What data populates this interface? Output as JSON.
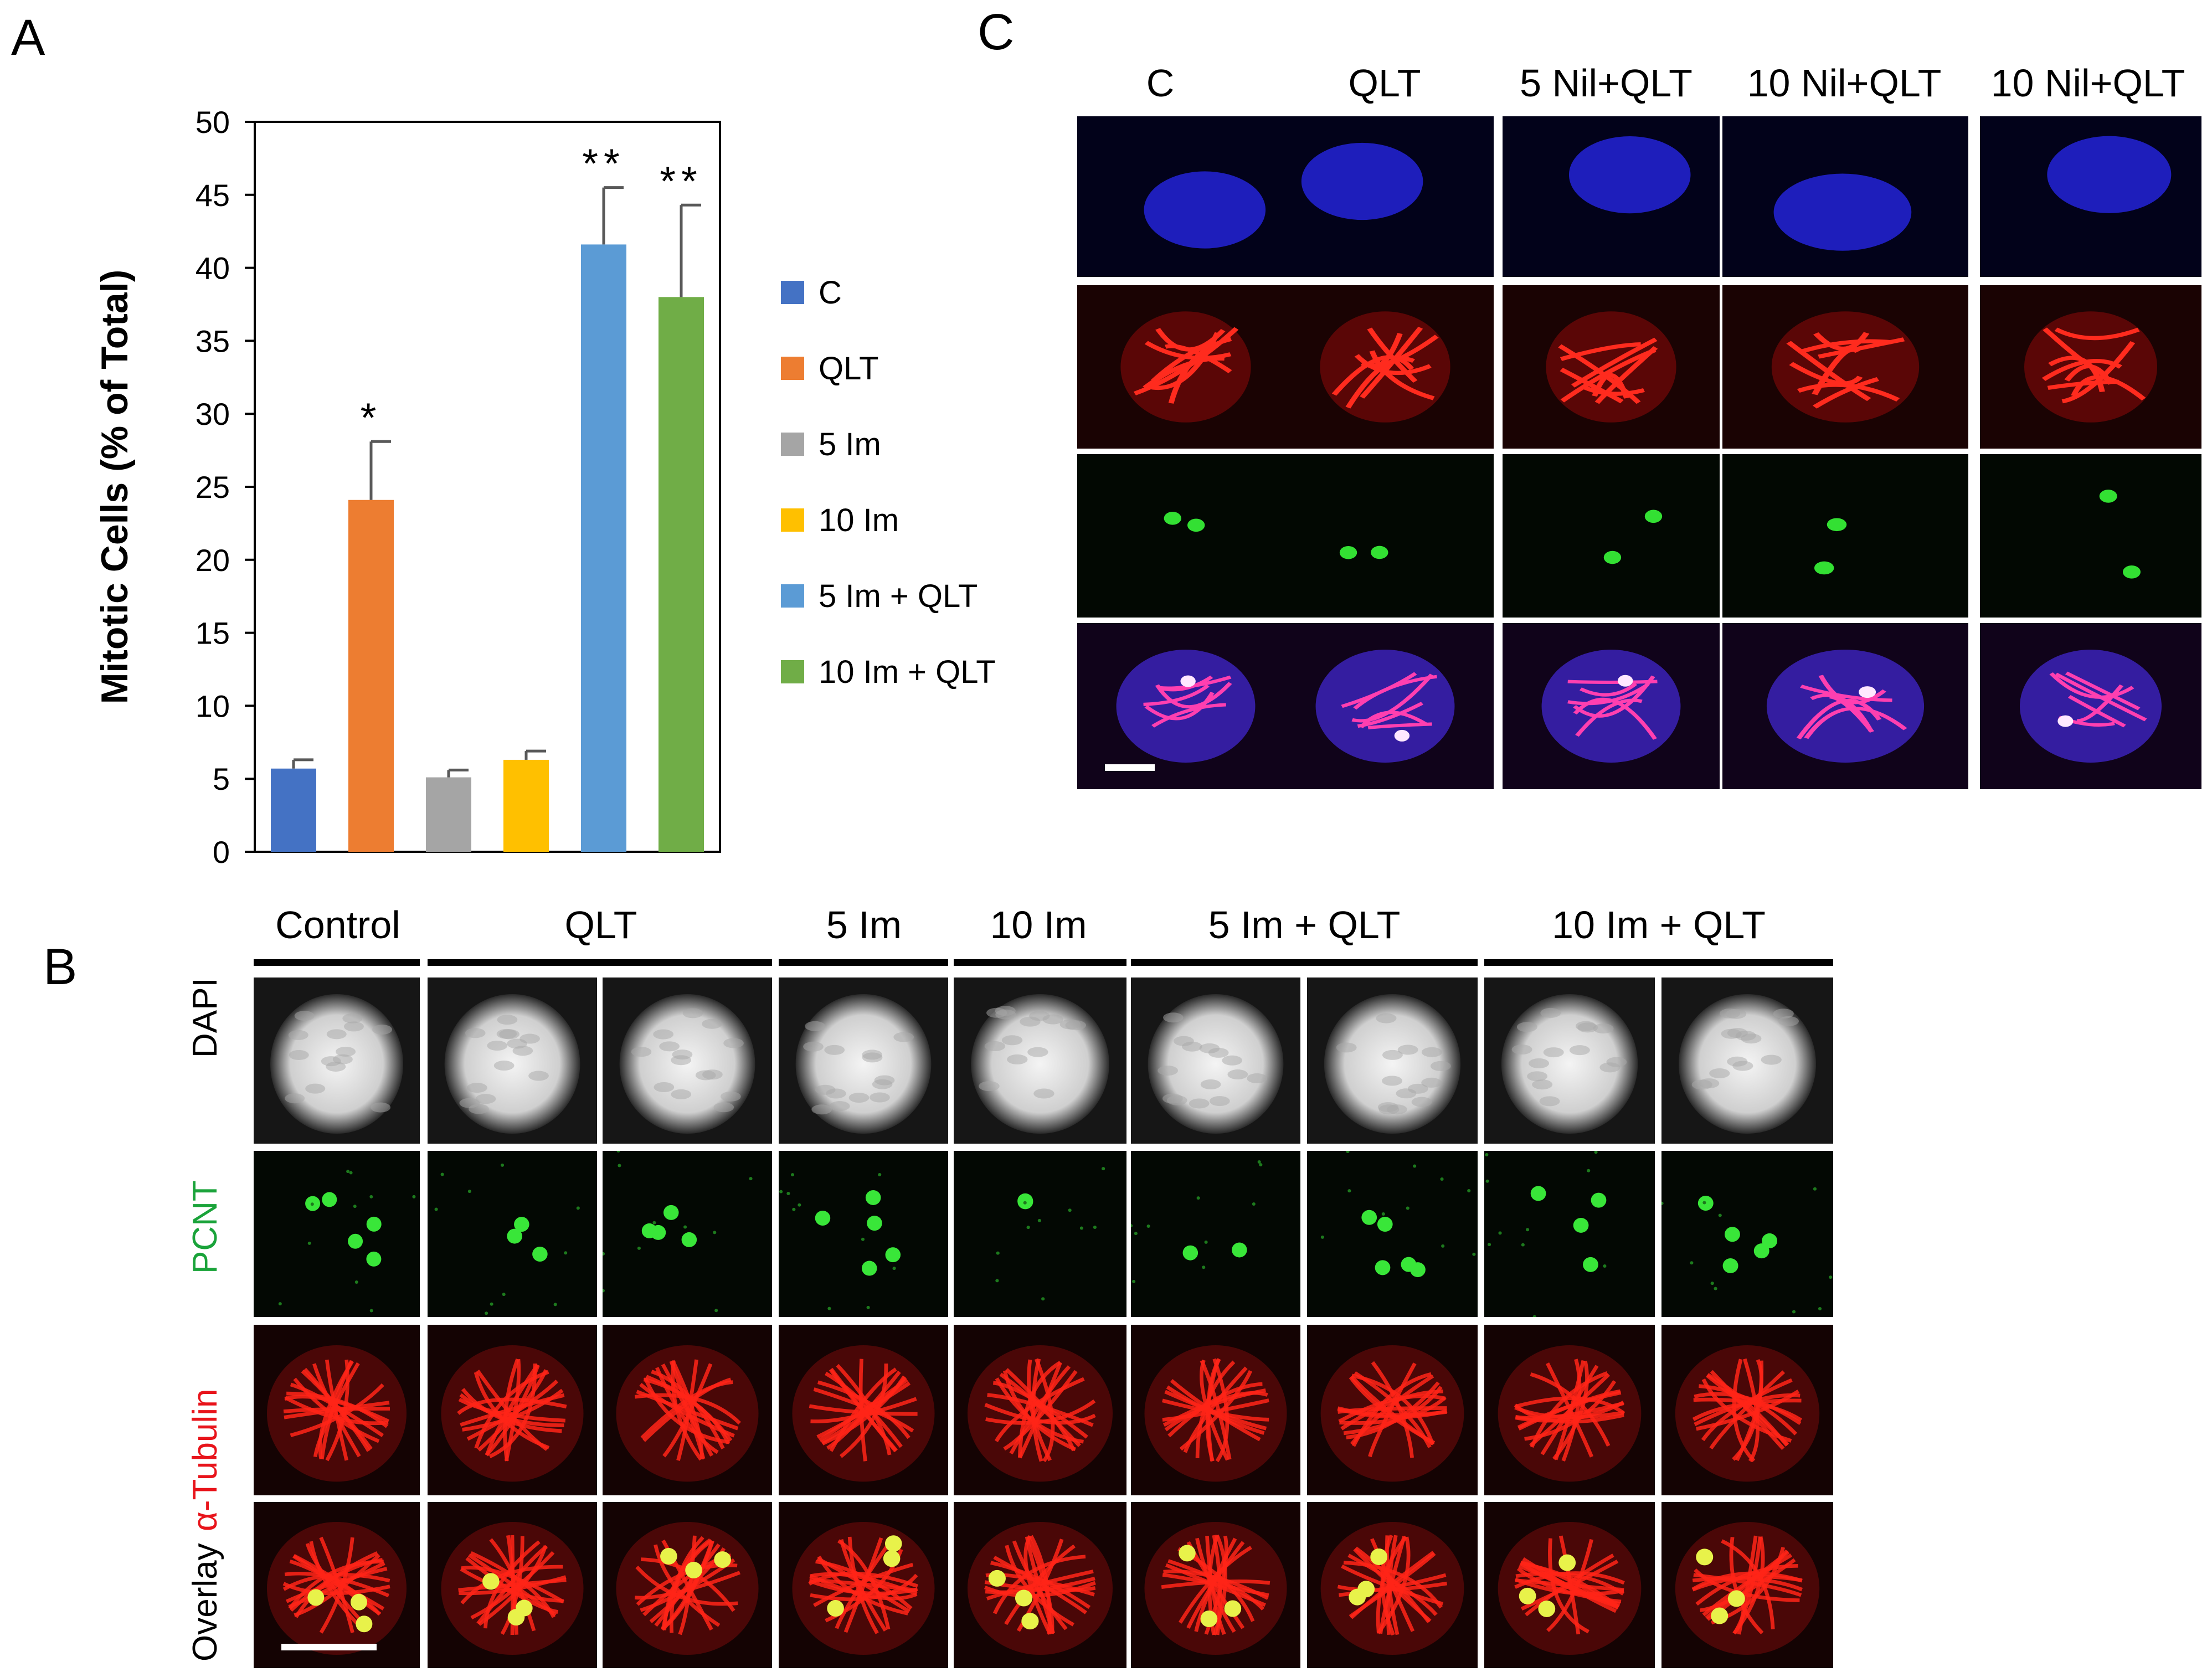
{
  "panel_labels": {
    "a": "A",
    "b": "B",
    "c": "C"
  },
  "chart_data": {
    "type": "bar",
    "ylabel": "Mitotic Cells (% of Total)",
    "ylim": [
      0,
      50
    ],
    "yticks": [
      0,
      5,
      10,
      15,
      20,
      25,
      30,
      35,
      40,
      45,
      50
    ],
    "categories": [
      "C",
      "QLT",
      "5 Im",
      "10 Im",
      "5 Im + QLT",
      "10 Im + QLT"
    ],
    "values": [
      5.7,
      24.1,
      5.1,
      6.3,
      41.6,
      38.0
    ],
    "errors": [
      0.6,
      4.0,
      0.5,
      0.6,
      3.9,
      6.3
    ],
    "significance": [
      "",
      "*",
      "",
      "",
      "**",
      "**"
    ],
    "colors": [
      "#4472C4",
      "#ED7D31",
      "#A5A5A5",
      "#FFC000",
      "#5B9BD5",
      "#70AD47"
    ],
    "grid": false,
    "legend_position": "right"
  },
  "legend": [
    {
      "label": "C",
      "color": "#4472C4"
    },
    {
      "label": "QLT",
      "color": "#ED7D31"
    },
    {
      "label": "5 Im",
      "color": "#A5A5A5"
    },
    {
      "label": "10 Im",
      "color": "#FFC000"
    },
    {
      "label": "5 Im + QLT",
      "color": "#5B9BD5"
    },
    {
      "label": "10 Im + QLT",
      "color": "#70AD47"
    }
  ],
  "panel_b": {
    "columns": [
      "Control",
      "QLT",
      "5 Im",
      "10 Im",
      "5 Im + QLT",
      "10 Im + QLT"
    ],
    "rows": [
      {
        "label": "DAPI",
        "color": "#000000"
      },
      {
        "label": "PCNT",
        "color": "#1aa33a"
      },
      {
        "label": "α-Tubulin",
        "color": "#e8141b"
      },
      {
        "label": "Overlay",
        "color": "#000000"
      }
    ]
  },
  "panel_c": {
    "columns": [
      "C",
      "QLT",
      "5 Nil+QLT",
      "10 Nil+QLT",
      "10 Nil+QLT"
    ]
  }
}
